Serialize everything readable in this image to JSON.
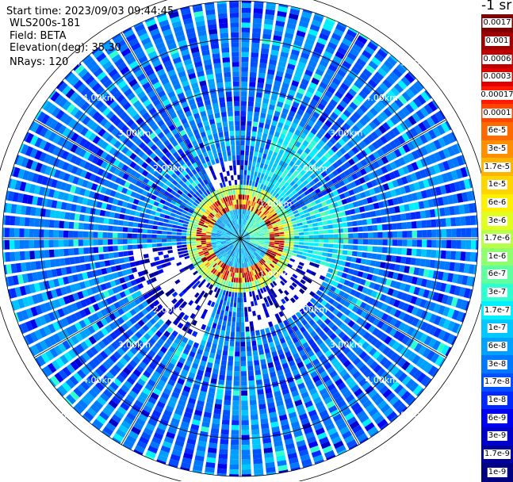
{
  "info": {
    "start_time": "Start time: 2023/09/03 09:44:45",
    "instrument": "WLS200s-181",
    "field": "Field: BETA",
    "elevation": "Elevation(deg): 35.30",
    "nrays": "NRays: 120"
  },
  "colorbar": {
    "title": "-1 sr",
    "labels": [
      "0.0017",
      "0.001",
      "0.0006",
      "0.0003",
      "0.00017",
      "0.0001",
      "6e-5",
      "3e-5",
      "1.7e-5",
      "1e-5",
      "6e-6",
      "3e-6",
      "1.7e-6",
      "1e-6",
      "6e-7",
      "3e-7",
      "1.7e-7",
      "1e-7",
      "6e-8",
      "3e-8",
      "1.7e-8",
      "1e-8",
      "6e-9",
      "3e-9",
      "1.7e-9",
      "1e-9"
    ],
    "colors": [
      "#800000",
      "#a00000",
      "#c00000",
      "#e00000",
      "#ff1a00",
      "#ff4500",
      "#ff6a00",
      "#ff8f00",
      "#ffb400",
      "#ffd500",
      "#fff000",
      "#e0ff20",
      "#b8ff48",
      "#8fff70",
      "#60ffa0",
      "#30ffd0",
      "#00f0ff",
      "#00c8ff",
      "#00a0ff",
      "#0078ff",
      "#0050ff",
      "#0028ff",
      "#0000f0",
      "#0000c8",
      "#0000a0",
      "#000080"
    ]
  },
  "chart_data": {
    "type": "polar_ppi",
    "field": "BETA",
    "units": "-1 sr",
    "elevation_deg": 35.3,
    "n_rays": 120,
    "range_rings": [
      {
        "label": "2.00km",
        "km": 2
      },
      {
        "label": "3.00km",
        "km": 3
      },
      {
        "label": "4.00km",
        "km": 4
      },
      {
        "label": "5.00km",
        "km": 5
      }
    ],
    "inner_ring_label": "1.00km",
    "max_range_km": 5.9,
    "azimuth_spokes_deg": [
      0,
      30,
      60,
      90,
      120,
      150,
      180,
      210,
      240,
      270,
      300,
      330
    ],
    "color_scale": {
      "min": "1e-9",
      "max": "0.0017",
      "scale": "log"
    },
    "features": [
      {
        "name": "high backscatter ring",
        "range_km": [
          0.6,
          0.9
        ],
        "level": "0.0003-0.0017"
      },
      {
        "name": "near-field dense echoes",
        "range_km": [
          0.4,
          1.2
        ],
        "level": "1.7e-5-1.7e-6"
      },
      {
        "name": "clear-air background",
        "range_km": [
          1.2,
          5.9
        ],
        "level": "3e-8-1.7e-7"
      },
      {
        "name": "gap sector",
        "azimuth_deg": [
          200,
          260
        ],
        "range_km": [
          0.9,
          2.2
        ],
        "level": "3e-9-1.7e-8"
      }
    ]
  }
}
